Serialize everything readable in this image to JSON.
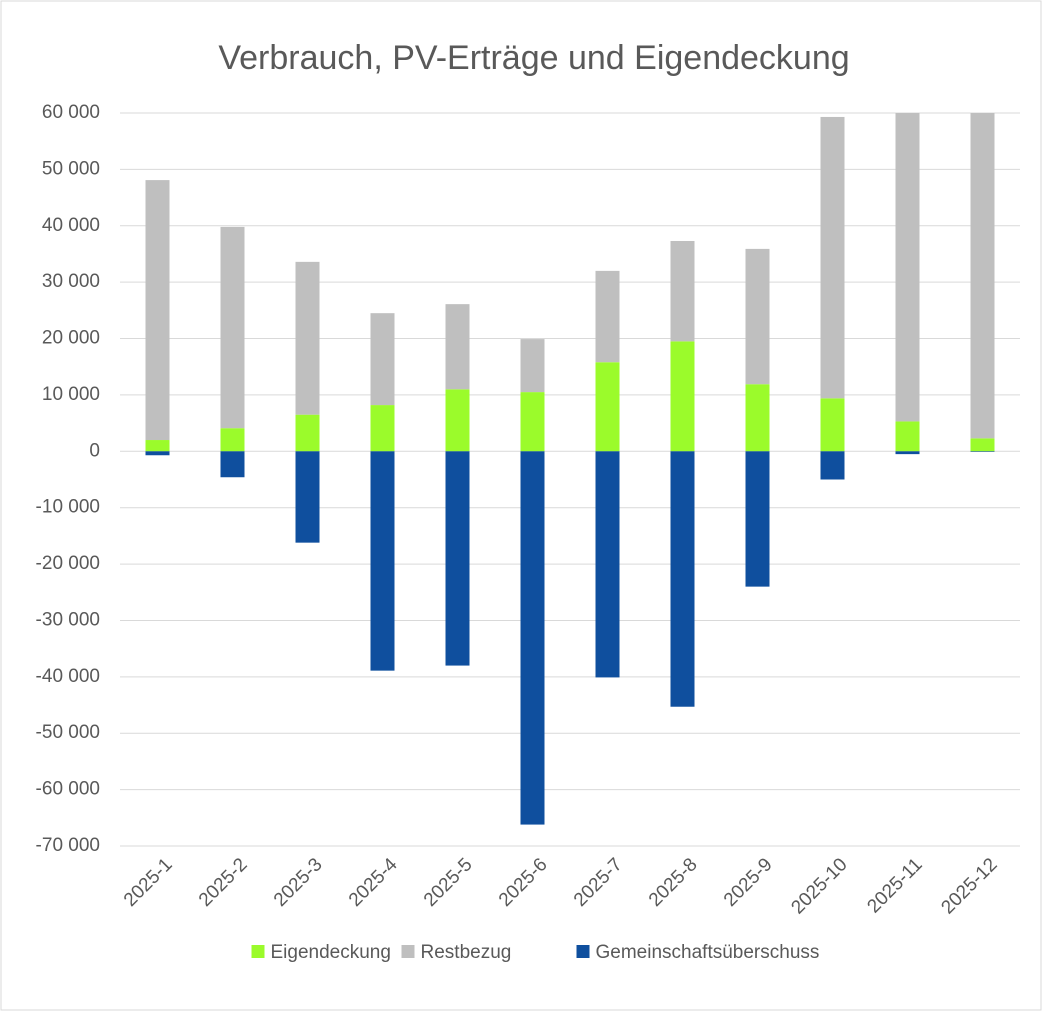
{
  "chart_data": {
    "type": "stacked-bar",
    "title": "Verbrauch, PV-Erträge und Eigendeckung",
    "categories": [
      "2025-1",
      "2025-2",
      "2025-3",
      "2025-4",
      "2025-5",
      "2025-6",
      "2025-7",
      "2025-8",
      "2025-9",
      "2025-10",
      "2025-11",
      "2025-12"
    ],
    "series": [
      {
        "name": "Eigendeckung",
        "color": "#9bfb2b",
        "values": [
          2000,
          4100,
          6500,
          8200,
          11000,
          10500,
          15800,
          19500,
          11900,
          9400,
          5300,
          2300
        ]
      },
      {
        "name": "Restbezug",
        "color": "#bfbfbf",
        "values": [
          46100,
          35700,
          27100,
          16300,
          15100,
          9400,
          16200,
          17800,
          24000,
          49900,
          54700,
          57700
        ]
      },
      {
        "name": "Gemeinschaftsüberschuss",
        "color": "#0f4f9e",
        "values": [
          -700,
          -4600,
          -16200,
          -38900,
          -38000,
          -66200,
          -40100,
          -45300,
          -24000,
          -5000,
          -500,
          -100
        ]
      }
    ],
    "ylim": [
      -70000,
      60000
    ],
    "yticks": [
      {
        "value": -70000,
        "label": "-70 000"
      },
      {
        "value": -60000,
        "label": "-60 000"
      },
      {
        "value": -50000,
        "label": "-50 000"
      },
      {
        "value": -40000,
        "label": "-40 000"
      },
      {
        "value": -30000,
        "label": "-30 000"
      },
      {
        "value": -20000,
        "label": "-20 000"
      },
      {
        "value": -10000,
        "label": "-10 000"
      },
      0,
      {
        "value": 10000,
        "label": "10 000"
      },
      {
        "value": 20000,
        "label": "20 000"
      },
      {
        "value": 30000,
        "label": "30 000"
      },
      {
        "value": 40000,
        "label": "40 000"
      },
      {
        "value": 50000,
        "label": "50 000"
      },
      {
        "value": 60000,
        "label": "60 000"
      }
    ],
    "grid": true,
    "legend": "bottom"
  }
}
